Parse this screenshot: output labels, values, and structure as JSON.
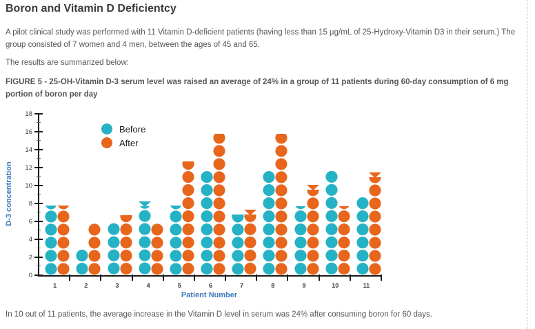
{
  "page": {
    "title": "Boron and Vitamin D Deficientcy",
    "intro": "A pilot clinical study was performed with 11 Vitamin D-deficient patients (having less than 15 µg/mL of 25-Hydroxy-Vitamin D3 in their serum.) The group consisted of 7 women and 4 men, between the ages of 45 and 65.",
    "results_line": "The results are summarized below:",
    "figure_caption": "FIGURE 5 - 25-OH-Vitamin D-3 serum level was raised an average of 24% in a group of 11 patients during 60-day consumption of 6 mg portion of boron per day",
    "footer_text": "In 10 out of 11 patients, the average increase in the Vitamin D level in serum was 24% after consuming boron for 60 days."
  },
  "chart_data": {
    "type": "bar",
    "subtype": "stacked-dot-bars",
    "xlabel": "Patient Number",
    "ylabel": "D-3 concentration",
    "categories": [
      "1",
      "2",
      "3",
      "4",
      "5",
      "6",
      "7",
      "8",
      "9",
      "10",
      "11"
    ],
    "series": [
      {
        "name": "Before",
        "color": "#24b2c4",
        "values": [
          7.8,
          3.0,
          5.9,
          8.2,
          7.8,
          11.7,
          6.8,
          11.7,
          7.7,
          11.6,
          8.7
        ],
        "triangle_caps": [
          false,
          false,
          false,
          true,
          false,
          false,
          false,
          false,
          false,
          false,
          false
        ]
      },
      {
        "name": "After",
        "color": "#e8651c",
        "values": [
          7.8,
          5.8,
          6.7,
          5.8,
          12.7,
          15.8,
          7.3,
          15.8,
          10.1,
          7.7,
          11.5
        ],
        "triangle_caps": [
          false,
          false,
          false,
          false,
          false,
          false,
          true,
          false,
          true,
          false,
          true
        ]
      }
    ],
    "ylim": [
      0,
      18
    ],
    "ytick_step": 2,
    "grid": false,
    "legend_position": "top-left-inside",
    "axis_color": "#1a1a1a",
    "axis_label_color": "#3e7bbd"
  }
}
